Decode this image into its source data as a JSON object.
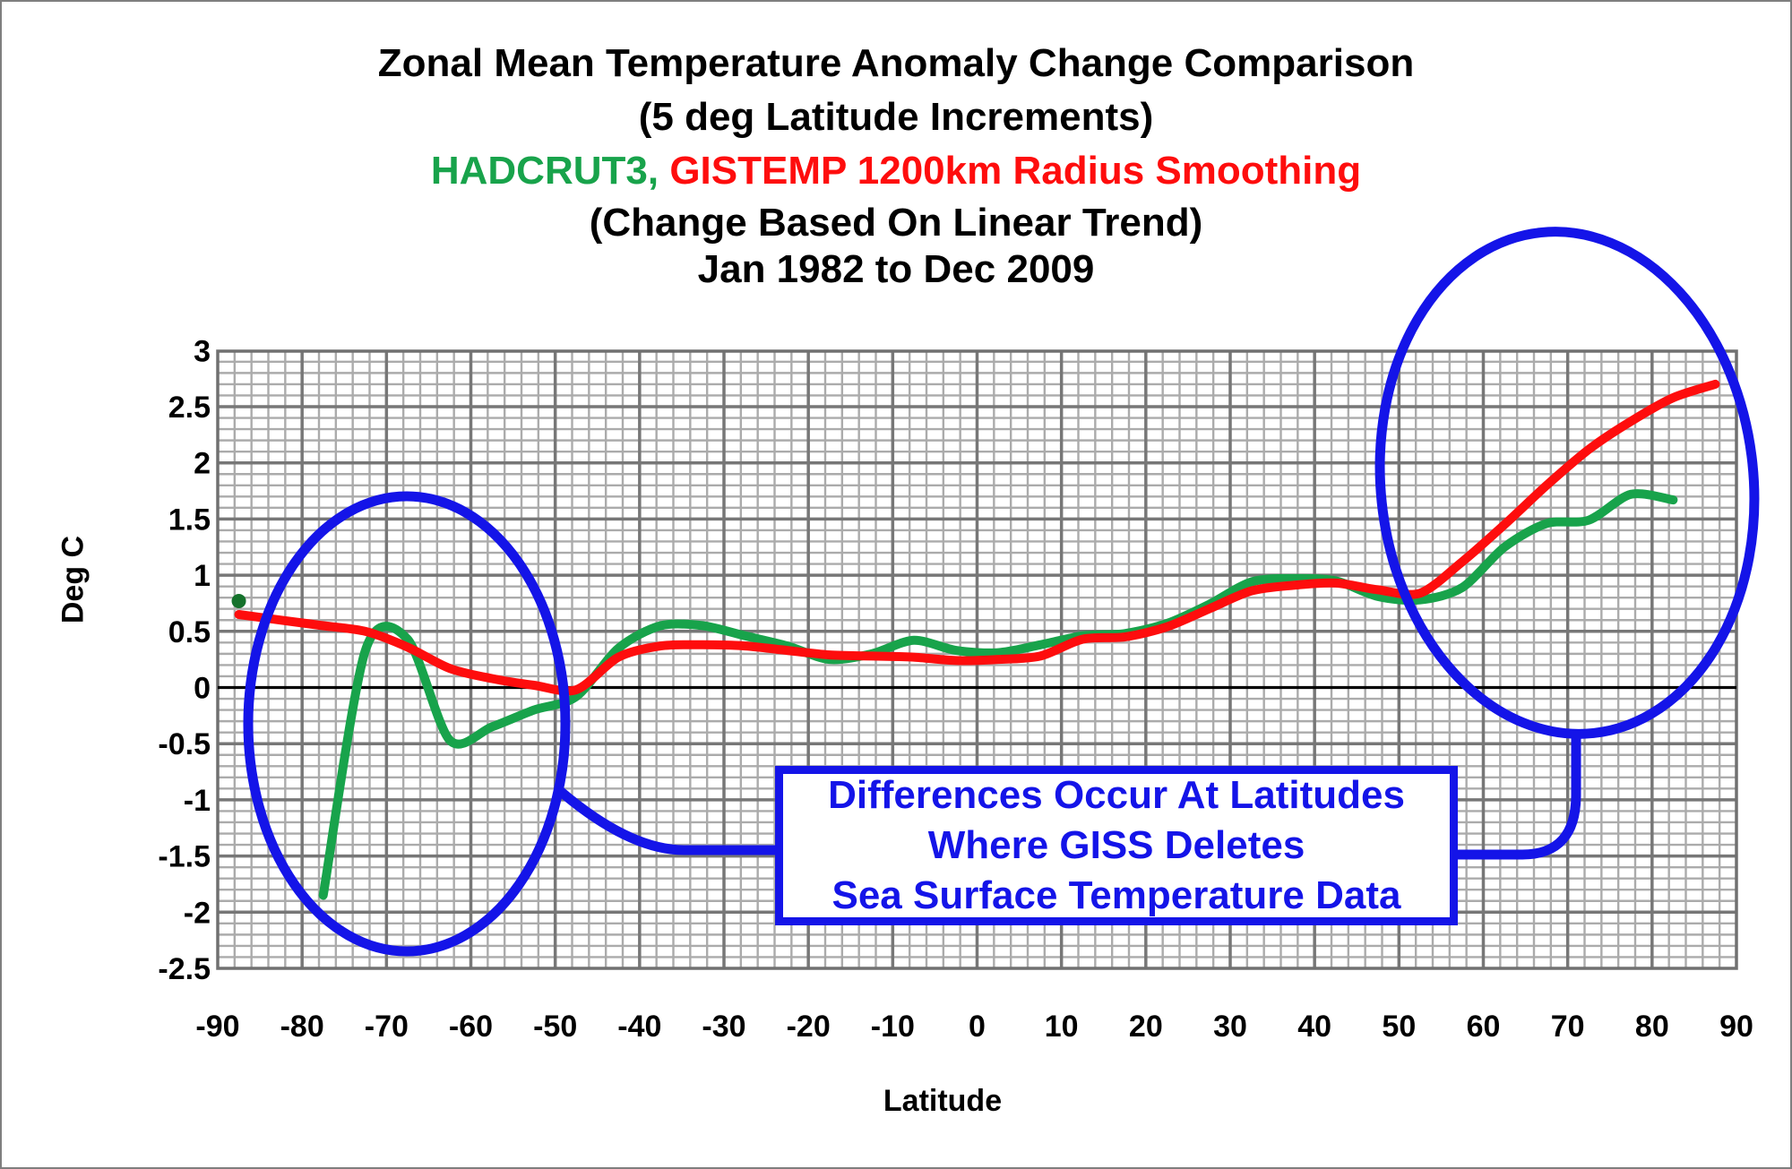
{
  "titles": {
    "line1": "Zonal Mean Temperature Anomaly Change Comparison",
    "line2": "(5 deg Latitude Increments)",
    "line3_green": "HADCRUT3,",
    "line3_red": " GISTEMP 1200km Radius Smoothing",
    "line4": "(Change Based On Linear Trend)",
    "line5": "Jan 1982 to Dec 2009"
  },
  "axes": {
    "y_title": "Deg C",
    "x_title": "Latitude"
  },
  "annotation_box": {
    "line1": "Differences Occur At Latitudes",
    "line2": "Where GISS Deletes",
    "line3": "Sea Surface Temperature Data"
  },
  "colors": {
    "hadcrut3": "#18a34b",
    "hadcrut3_dot": "#15722c",
    "gistemp": "#fe0d0d",
    "annotation_blue": "#1414e8",
    "grid_minor": "#ababab",
    "grid_major": "#777777",
    "plot_border": "#707070",
    "zero_line": "#000000",
    "tick_label": "#000000"
  },
  "chart_data": {
    "type": "line",
    "title": "Zonal Mean Temperature Anomaly Change Comparison (5 deg Latitude Increments), HADCRUT3, GISTEMP 1200km Radius Smoothing (Change Based On Linear Trend) Jan 1982 to Dec 2009",
    "xlabel": "Latitude",
    "ylabel": "Deg C",
    "xlim": [
      -90,
      90
    ],
    "ylim": [
      -2.5,
      3
    ],
    "x_ticks": [
      -90,
      -80,
      -70,
      -60,
      -50,
      -40,
      -30,
      -20,
      -10,
      0,
      10,
      20,
      30,
      40,
      50,
      60,
      70,
      80,
      90
    ],
    "y_ticks": [
      3,
      2.5,
      2,
      1.5,
      1,
      0.5,
      0,
      -0.5,
      -1,
      -1.5,
      -2,
      -2.5
    ],
    "grid": {
      "minor_x_step_deg": 2,
      "minor_y_step": 0.1,
      "major_x_step_deg": 10,
      "major_y_step": 0.5
    },
    "x": [
      -87.5,
      -82.5,
      -77.5,
      -72.5,
      -67.5,
      -62.5,
      -57.5,
      -52.5,
      -47.5,
      -42.5,
      -37.5,
      -32.5,
      -27.5,
      -22.5,
      -17.5,
      -12.5,
      -7.5,
      -2.5,
      2.5,
      7.5,
      12.5,
      17.5,
      22.5,
      27.5,
      32.5,
      37.5,
      42.5,
      47.5,
      52.5,
      57.5,
      62.5,
      67.5,
      72.5,
      77.5,
      82.5,
      87.5
    ],
    "series": [
      {
        "name": "HADCRUT3",
        "color_key": "hadcrut3",
        "values": [
          null,
          null,
          -1.85,
          0.33,
          0.43,
          -0.47,
          -0.35,
          -0.2,
          -0.08,
          0.35,
          0.55,
          0.55,
          0.46,
          0.37,
          0.25,
          0.3,
          0.42,
          0.33,
          0.31,
          0.38,
          0.46,
          0.48,
          0.57,
          0.74,
          0.94,
          0.97,
          0.95,
          0.81,
          0.78,
          0.89,
          1.25,
          1.46,
          1.49,
          1.72,
          1.67,
          null
        ],
        "isolated_point": {
          "x": -87.5,
          "value": 0.77
        }
      },
      {
        "name": "GISTEMP 1200km Radius Smoothing",
        "color_key": "gistemp",
        "values": [
          0.65,
          0.6,
          0.55,
          0.5,
          0.36,
          0.17,
          0.08,
          0.02,
          -0.02,
          0.27,
          0.37,
          0.38,
          0.37,
          0.33,
          0.29,
          0.28,
          0.27,
          0.24,
          0.25,
          0.28,
          0.43,
          0.45,
          0.54,
          0.7,
          0.86,
          0.91,
          0.93,
          0.87,
          0.84,
          1.12,
          1.45,
          1.8,
          2.12,
          2.37,
          2.58,
          2.7
        ]
      }
    ],
    "annotations": {
      "callout_text": [
        "Differences Occur At Latitudes",
        "Where GISS Deletes",
        "Sea Surface Temperature Data"
      ],
      "circled_regions": [
        "southern high latitudes (~-80 to -50)",
        "northern high latitudes (~50 to 90)"
      ]
    },
    "legend_position": "in-title"
  }
}
